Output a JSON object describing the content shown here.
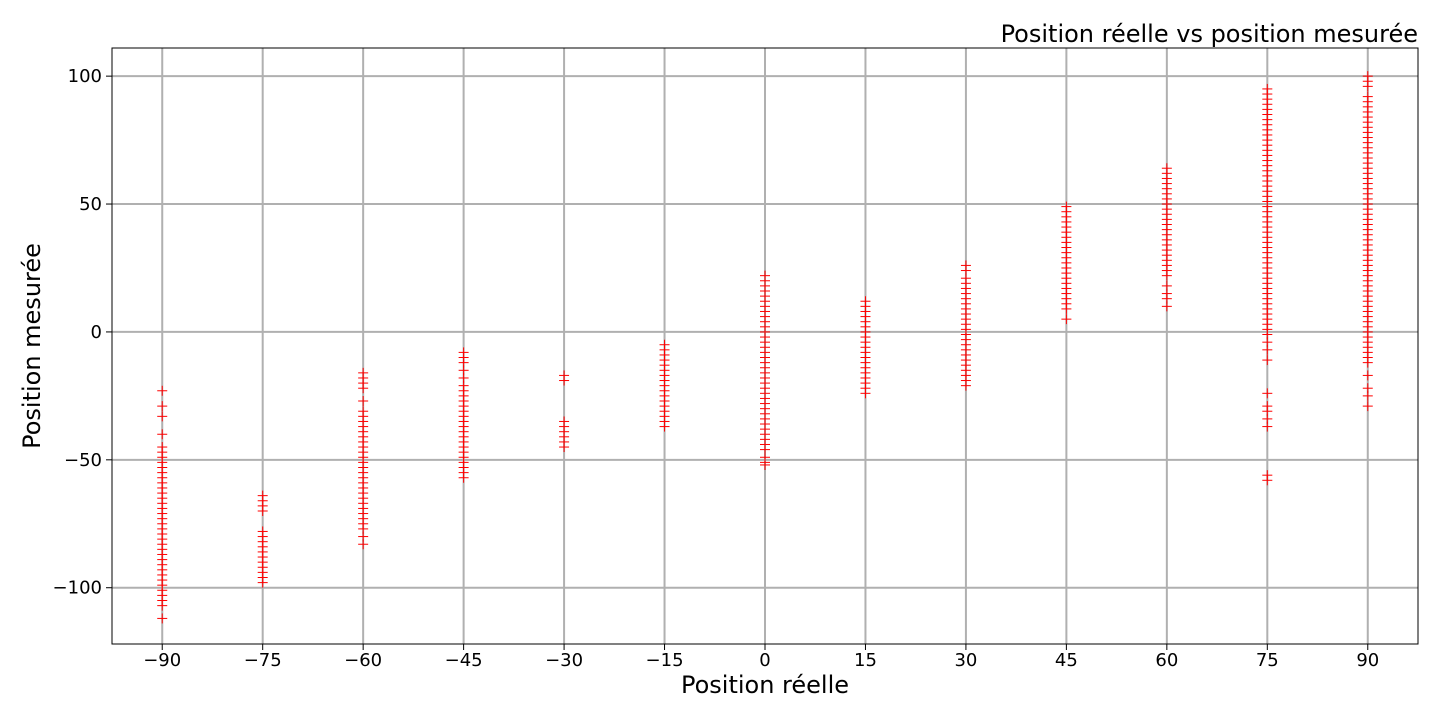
{
  "chart_data": {
    "type": "scatter",
    "title": "Position réelle vs position mesurée",
    "xlabel": "Position réelle",
    "ylabel": "Position mesurée",
    "xlim": [
      -97.5,
      97.5
    ],
    "ylim": [
      -122,
      111
    ],
    "xticks": [
      -90,
      -75,
      -60,
      -45,
      -30,
      -15,
      0,
      15,
      30,
      45,
      60,
      75,
      90
    ],
    "yticks": [
      -100,
      -50,
      0,
      50,
      100
    ],
    "xtick_labels": [
      "−90",
      "−75",
      "−60",
      "−45",
      "−30",
      "−15",
      "0",
      "15",
      "30",
      "45",
      "60",
      "75",
      "90"
    ],
    "ytick_labels": [
      "−100",
      "−50",
      "0",
      "50",
      "100"
    ],
    "grid": true,
    "marker": "+",
    "marker_color": "#ff0000",
    "series": [
      {
        "points": [
          {
            "x": -90,
            "ys": [
              -23,
              -29,
              -33,
              -40,
              -45,
              -47,
              -49,
              -51,
              -53,
              -55,
              -57,
              -59,
              -61,
              -63,
              -65,
              -67,
              -69,
              -71,
              -73,
              -75,
              -77,
              -79,
              -81,
              -83,
              -85,
              -87,
              -89,
              -91,
              -93,
              -95,
              -97,
              -99,
              -101,
              -103,
              -105,
              -107,
              -112
            ]
          },
          {
            "x": -75,
            "ys": [
              -64,
              -66,
              -68,
              -70,
              -78,
              -80,
              -82,
              -84,
              -86,
              -88,
              -90,
              -92,
              -94,
              -96,
              -98
            ]
          },
          {
            "x": -60,
            "ys": [
              -16,
              -18,
              -20,
              -22,
              -27,
              -31,
              -33,
              -35,
              -37,
              -39,
              -41,
              -43,
              -45,
              -47,
              -49,
              -51,
              -53,
              -55,
              -57,
              -59,
              -61,
              -63,
              -65,
              -67,
              -69,
              -71,
              -73,
              -75,
              -77,
              -80,
              -83
            ]
          },
          {
            "x": -45,
            "ys": [
              -8,
              -10,
              -12,
              -15,
              -18,
              -21,
              -23,
              -25,
              -27,
              -29,
              -31,
              -33,
              -35,
              -37,
              -39,
              -41,
              -43,
              -45,
              -47,
              -49,
              -51,
              -53,
              -55,
              -57
            ]
          },
          {
            "x": -30,
            "ys": [
              -17,
              -19,
              -35,
              -37,
              -39,
              -41,
              -43,
              -45
            ]
          },
          {
            "x": -15,
            "ys": [
              -5,
              -7,
              -9,
              -11,
              -13,
              -15,
              -17,
              -19,
              -21,
              -23,
              -25,
              -27,
              -29,
              -31,
              -33,
              -35,
              -37
            ]
          },
          {
            "x": 0,
            "ys": [
              22,
              20,
              18,
              16,
              14,
              12,
              10,
              8,
              6,
              4,
              2,
              0,
              -2,
              -4,
              -6,
              -8,
              -10,
              -12,
              -14,
              -16,
              -18,
              -20,
              -22,
              -24,
              -26,
              -28,
              -30,
              -32,
              -34,
              -36,
              -38,
              -40,
              -42,
              -44,
              -46,
              -49,
              -51,
              -52
            ]
          },
          {
            "x": 15,
            "ys": [
              12,
              10,
              8,
              6,
              4,
              2,
              0,
              -2,
              -4,
              -6,
              -8,
              -10,
              -12,
              -14,
              -16,
              -18,
              -20,
              -22,
              -24
            ]
          },
          {
            "x": 30,
            "ys": [
              26,
              24,
              21,
              19,
              17,
              15,
              13,
              11,
              9,
              7,
              5,
              3,
              1,
              -1,
              -3,
              -5,
              -7,
              -9,
              -11,
              -13,
              -15,
              -17,
              -19,
              -21
            ]
          },
          {
            "x": 45,
            "ys": [
              49,
              47,
              45,
              43,
              41,
              39,
              37,
              35,
              33,
              31,
              29,
              27,
              25,
              23,
              21,
              19,
              17,
              15,
              13,
              11,
              9,
              5
            ]
          },
          {
            "x": 60,
            "ys": [
              64,
              62,
              60,
              58,
              56,
              54,
              52,
              50,
              48,
              46,
              44,
              42,
              40,
              38,
              36,
              34,
              32,
              30,
              28,
              26,
              24,
              22,
              18,
              15,
              13,
              10
            ]
          },
          {
            "x": 75,
            "ys": [
              95,
              93,
              91,
              89,
              87,
              85,
              83,
              81,
              79,
              77,
              75,
              73,
              71,
              69,
              67,
              65,
              63,
              61,
              59,
              57,
              55,
              53,
              51,
              49,
              47,
              45,
              43,
              41,
              39,
              37,
              35,
              33,
              31,
              29,
              27,
              25,
              23,
              21,
              19,
              17,
              15,
              13,
              11,
              9,
              7,
              5,
              3,
              1,
              -1,
              -4,
              -7,
              -11,
              -24,
              -29,
              -31,
              -34,
              -37,
              -56,
              -58
            ]
          },
          {
            "x": 90,
            "ys": [
              100,
              98,
              96,
              92,
              90,
              88,
              86,
              84,
              82,
              80,
              78,
              76,
              74,
              72,
              70,
              68,
              66,
              64,
              62,
              60,
              58,
              56,
              54,
              52,
              50,
              48,
              46,
              44,
              42,
              40,
              38,
              36,
              34,
              32,
              30,
              28,
              26,
              24,
              22,
              20,
              18,
              16,
              14,
              12,
              10,
              8,
              6,
              4,
              2,
              0,
              -2,
              -4,
              -6,
              -8,
              -10,
              -12,
              -17,
              -22,
              -25,
              -29
            ]
          }
        ]
      }
    ]
  }
}
